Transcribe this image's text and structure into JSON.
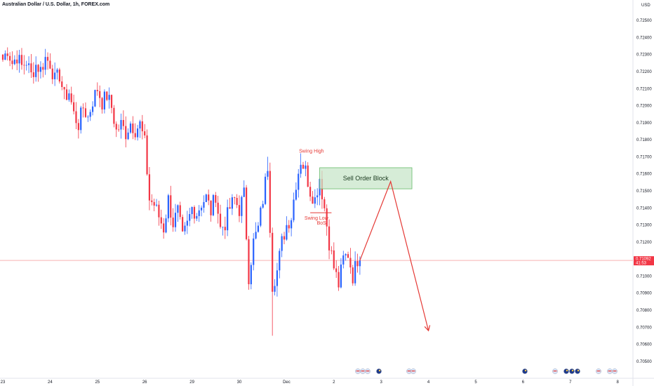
{
  "header": {
    "title": "Australian Dollar / U.S. Dollar, 1h, FOREX.com",
    "currency": "USD"
  },
  "colors": {
    "up": "#2962ff",
    "down": "#f23645",
    "annotation": "#e53935",
    "order_block_fill": "#c8e6c9",
    "order_block_stroke": "#66bb6a",
    "price_line": "#f7a6a6",
    "axis_border": "#e0e3eb"
  },
  "chart_data": {
    "type": "candlestick",
    "symbol": "AUDUSD",
    "timeframe": "1h",
    "y_axis": {
      "min": 0.7045,
      "max": 0.7255,
      "ticks": [
        "0.72500",
        "0.72400",
        "0.72300",
        "0.72200",
        "0.72100",
        "0.72000",
        "0.71900",
        "0.71800",
        "0.71700",
        "0.71600",
        "0.71500",
        "0.71400",
        "0.71300",
        "0.71200",
        "0.71100",
        "0.71000",
        "0.70900",
        "0.70800",
        "0.70700",
        "0.70600",
        "0.70500"
      ]
    },
    "x_axis": {
      "labels": [
        {
          "label": "23",
          "index": 0
        },
        {
          "label": "24",
          "index": 20
        },
        {
          "label": "25",
          "index": 40
        },
        {
          "label": "26",
          "index": 60
        },
        {
          "label": "29",
          "index": 80
        },
        {
          "label": "30",
          "index": 100
        },
        {
          "label": "Dec",
          "index": 120
        },
        {
          "label": "2",
          "index": 140
        },
        {
          "label": "3",
          "index": 160
        },
        {
          "label": "4",
          "index": 180
        },
        {
          "label": "5",
          "index": 200
        },
        {
          "label": "6",
          "index": 220
        },
        {
          "label": "7",
          "index": 240
        },
        {
          "label": "8",
          "index": 260
        }
      ],
      "total_slots": 270
    },
    "last_price": {
      "value": "0.71092",
      "countdown": "41:53",
      "price": 0.71092
    },
    "keypoints": [
      [
        0,
        0.7227
      ],
      [
        2,
        0.7233
      ],
      [
        4,
        0.7225
      ],
      [
        6,
        0.7229
      ],
      [
        8,
        0.7223
      ],
      [
        10,
        0.7226
      ],
      [
        12,
        0.7218
      ],
      [
        14,
        0.7224
      ],
      [
        16,
        0.7221
      ],
      [
        18,
        0.7228
      ],
      [
        20,
        0.7225
      ],
      [
        22,
        0.7215
      ],
      [
        24,
        0.7218
      ],
      [
        26,
        0.7205
      ],
      [
        28,
        0.7208
      ],
      [
        30,
        0.7195
      ],
      [
        32,
        0.7189
      ],
      [
        34,
        0.7199
      ],
      [
        36,
        0.7193
      ],
      [
        38,
        0.7203
      ],
      [
        40,
        0.721
      ],
      [
        42,
        0.7202
      ],
      [
        44,
        0.7206
      ],
      [
        46,
        0.7199
      ],
      [
        48,
        0.7185
      ],
      [
        50,
        0.7189
      ],
      [
        52,
        0.7184
      ],
      [
        54,
        0.719
      ],
      [
        56,
        0.7186
      ],
      [
        58,
        0.7189
      ],
      [
        60,
        0.7178
      ],
      [
        62,
        0.7145
      ],
      [
        64,
        0.7142
      ],
      [
        66,
        0.7135
      ],
      [
        68,
        0.7128
      ],
      [
        70,
        0.7145
      ],
      [
        72,
        0.7131
      ],
      [
        74,
        0.7138
      ],
      [
        76,
        0.7122
      ],
      [
        78,
        0.713
      ],
      [
        80,
        0.714
      ],
      [
        82,
        0.7137
      ],
      [
        84,
        0.7143
      ],
      [
        86,
        0.7146
      ],
      [
        88,
        0.7138
      ],
      [
        90,
        0.7148
      ],
      [
        92,
        0.7128
      ],
      [
        94,
        0.7131
      ],
      [
        96,
        0.714
      ],
      [
        98,
        0.7145
      ],
      [
        100,
        0.7139
      ],
      [
        102,
        0.7148
      ],
      [
        104,
        0.71
      ],
      [
        106,
        0.712
      ],
      [
        108,
        0.7128
      ],
      [
        110,
        0.7145
      ],
      [
        112,
        0.7165
      ],
      [
        114,
        0.7095
      ],
      [
        116,
        0.7103
      ],
      [
        118,
        0.712
      ],
      [
        120,
        0.713
      ],
      [
        122,
        0.7135
      ],
      [
        124,
        0.7155
      ],
      [
        126,
        0.7168
      ],
      [
        128,
        0.7162
      ],
      [
        130,
        0.715
      ],
      [
        132,
        0.7145
      ],
      [
        134,
        0.7158
      ],
      [
        136,
        0.714
      ],
      [
        138,
        0.712
      ],
      [
        140,
        0.7105
      ],
      [
        142,
        0.7095
      ],
      [
        144,
        0.711
      ],
      [
        146,
        0.7113
      ],
      [
        148,
        0.71
      ],
      [
        150,
        0.711
      ],
      [
        151,
        0.71092
      ]
    ],
    "annotations": {
      "order_block": {
        "label": "Sell Order Block",
        "price_top": 0.71636,
        "price_bottom": 0.71512,
        "index_start": 134,
        "index_end": 173
      },
      "swing_high": {
        "label": "Swing High",
        "price": 0.71725,
        "index": 132
      },
      "swing_low": {
        "label": "Swing Low",
        "price": 0.71372,
        "index": 132
      },
      "bos": {
        "label": "BoS",
        "price": 0.71315,
        "index": 133
      },
      "projection": [
        {
          "index": 151,
          "price": 0.71092
        },
        {
          "index": 164,
          "price": 0.71555
        },
        {
          "index": 180,
          "price": 0.7068
        }
      ]
    }
  }
}
